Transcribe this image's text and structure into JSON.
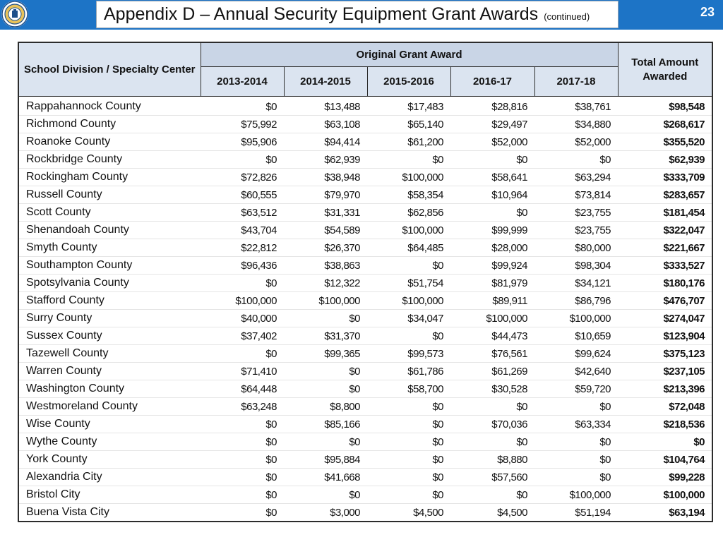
{
  "header": {
    "title": "Appendix D – Annual Security Equipment Grant Awards",
    "title_suffix": "(continued)",
    "page_number": "23"
  },
  "colors": {
    "header_bar": "#1d74c6",
    "table_header": "#dbe4f0"
  },
  "table": {
    "name_header": "School Division / Specialty Center",
    "group_header": "Original Grant Award",
    "total_header": "Total Amount Awarded",
    "year_headers": [
      "2013-2014",
      "2014-2015",
      "2015-2016",
      "2016-17",
      "2017-18"
    ],
    "rows": [
      {
        "name": "Rappahannock County",
        "y1": "$0",
        "y2": "$13,488",
        "y3": "$17,483",
        "y4": "$28,816",
        "y5": "$38,761",
        "total": "$98,548"
      },
      {
        "name": "Richmond County",
        "y1": "$75,992",
        "y2": "$63,108",
        "y3": "$65,140",
        "y4": "$29,497",
        "y5": "$34,880",
        "total": "$268,617"
      },
      {
        "name": "Roanoke County",
        "y1": "$95,906",
        "y2": "$94,414",
        "y3": "$61,200",
        "y4": "$52,000",
        "y5": "$52,000",
        "total": "$355,520"
      },
      {
        "name": "Rockbridge County",
        "y1": "$0",
        "y2": "$62,939",
        "y3": "$0",
        "y4": "$0",
        "y5": "$0",
        "total": "$62,939"
      },
      {
        "name": "Rockingham County",
        "y1": "$72,826",
        "y2": "$38,948",
        "y3": "$100,000",
        "y4": "$58,641",
        "y5": "$63,294",
        "total": "$333,709"
      },
      {
        "name": "Russell County",
        "y1": "$60,555",
        "y2": "$79,970",
        "y3": "$58,354",
        "y4": "$10,964",
        "y5": "$73,814",
        "total": "$283,657"
      },
      {
        "name": "Scott County",
        "y1": "$63,512",
        "y2": "$31,331",
        "y3": "$62,856",
        "y4": "$0",
        "y5": "$23,755",
        "total": "$181,454"
      },
      {
        "name": "Shenandoah County",
        "y1": "$43,704",
        "y2": "$54,589",
        "y3": "$100,000",
        "y4": "$99,999",
        "y5": "$23,755",
        "total": "$322,047"
      },
      {
        "name": "Smyth County",
        "y1": "$22,812",
        "y2": "$26,370",
        "y3": "$64,485",
        "y4": "$28,000",
        "y5": "$80,000",
        "total": "$221,667"
      },
      {
        "name": "Southampton County",
        "y1": "$96,436",
        "y2": "$38,863",
        "y3": "$0",
        "y4": "$99,924",
        "y5": "$98,304",
        "total": "$333,527"
      },
      {
        "name": "Spotsylvania County",
        "y1": "$0",
        "y2": "$12,322",
        "y3": "$51,754",
        "y4": "$81,979",
        "y5": "$34,121",
        "total": "$180,176"
      },
      {
        "name": "Stafford County",
        "y1": "$100,000",
        "y2": "$100,000",
        "y3": "$100,000",
        "y4": "$89,911",
        "y5": "$86,796",
        "total": "$476,707"
      },
      {
        "name": "Surry County",
        "y1": "$40,000",
        "y2": "$0",
        "y3": "$34,047",
        "y4": "$100,000",
        "y5": "$100,000",
        "total": "$274,047"
      },
      {
        "name": "Sussex County",
        "y1": "$37,402",
        "y2": "$31,370",
        "y3": "$0",
        "y4": "$44,473",
        "y5": "$10,659",
        "total": "$123,904"
      },
      {
        "name": "Tazewell County",
        "y1": "$0",
        "y2": "$99,365",
        "y3": "$99,573",
        "y4": "$76,561",
        "y5": "$99,624",
        "total": "$375,123"
      },
      {
        "name": "Warren County",
        "y1": "$71,410",
        "y2": "$0",
        "y3": "$61,786",
        "y4": "$61,269",
        "y5": "$42,640",
        "total": "$237,105"
      },
      {
        "name": "Washington County",
        "y1": "$64,448",
        "y2": "$0",
        "y3": "$58,700",
        "y4": "$30,528",
        "y5": "$59,720",
        "total": "$213,396"
      },
      {
        "name": "Westmoreland County",
        "y1": "$63,248",
        "y2": "$8,800",
        "y3": "$0",
        "y4": "$0",
        "y5": "$0",
        "total": "$72,048"
      },
      {
        "name": "Wise County",
        "y1": "$0",
        "y2": "$85,166",
        "y3": "$0",
        "y4": "$70,036",
        "y5": "$63,334",
        "total": "$218,536"
      },
      {
        "name": "Wythe County",
        "y1": "$0",
        "y2": "$0",
        "y3": "$0",
        "y4": "$0",
        "y5": "$0",
        "total": "$0"
      },
      {
        "name": "York County",
        "y1": "$0",
        "y2": "$95,884",
        "y3": "$0",
        "y4": "$8,880",
        "y5": "$0",
        "total": "$104,764"
      },
      {
        "name": "Alexandria City",
        "y1": "$0",
        "y2": "$41,668",
        "y3": "$0",
        "y4": "$57,560",
        "y5": "$0",
        "total": "$99,228"
      },
      {
        "name": "Bristol City",
        "y1": "$0",
        "y2": "$0",
        "y3": "$0",
        "y4": "$0",
        "y5": "$100,000",
        "total": "$100,000"
      },
      {
        "name": "Buena Vista City",
        "y1": "$0",
        "y2": "$3,000",
        "y3": "$4,500",
        "y4": "$4,500",
        "y5": "$51,194",
        "total": "$63,194"
      }
    ]
  }
}
